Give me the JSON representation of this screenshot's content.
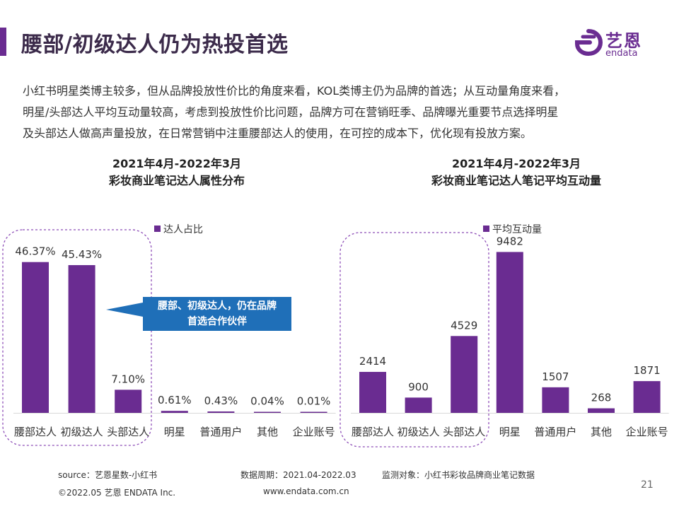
{
  "header": {
    "title": "腰部/初级达人仍为热投首选",
    "logo_cn": "艺恩",
    "logo_en": "endata"
  },
  "intro": {
    "line1": "小红书明星类博主较多，但从品牌投放性价比的角度来看，KOL类博主仍为品牌的首选；从互动量角度来看，",
    "line2": "明星/头部达人平均互动量较高，考虑到投放性价比问题，品牌方可在营销旺季、品牌曝光重要节点选择明星",
    "line3": "及头部达人做高声量投放，在日常营销中注重腰部达人的使用，在可控的成本下，优化现有投放方案。"
  },
  "callout": {
    "line1": "腰部、初级达人，仍在品牌",
    "line2": "首选合作伙伴"
  },
  "footer": {
    "source": "source：艺恩星数-小红书",
    "period": "数据周期：2021.04-2022.03",
    "target": "监测对象：小红书彩妆品牌商业笔记数据",
    "copyright": "©2022.05 艺恩 ENDATA Inc.",
    "website": "www.endata.com.cn",
    "page_number": "21"
  },
  "colors": {
    "bar": "#6a2c91",
    "callout": "#1f6fb8",
    "highlight_border": "#8e4fb8"
  },
  "chart_data": [
    {
      "type": "bar",
      "title_line1": "2021年4月-2022年3月",
      "title_line2": "彩妆商业笔记达人属性分布",
      "categories": [
        "腰部达人",
        "初级达人",
        "头部达人",
        "明星",
        "普通用户",
        "其他",
        "企业账号"
      ],
      "series": [
        {
          "name": "达人占比",
          "values": [
            46.37,
            45.43,
            7.1,
            0.61,
            0.43,
            0.04,
            0.01
          ],
          "labels": [
            "46.37%",
            "45.43%",
            "7.10%",
            "0.61%",
            "0.43%",
            "0.04%",
            "0.01%"
          ]
        }
      ],
      "ylim": [
        0,
        50
      ],
      "legend": "top-right",
      "grid": false,
      "highlighted_categories": [
        "腰部达人",
        "初级达人",
        "头部达人"
      ]
    },
    {
      "type": "bar",
      "title_line1": "2021年4月-2022年3月",
      "title_line2": "彩妆商业笔记达人笔记平均互动量",
      "categories": [
        "腰部达人",
        "初级达人",
        "头部达人",
        "明星",
        "普通用户",
        "其他",
        "企业账号"
      ],
      "series": [
        {
          "name": "平均互动量",
          "values": [
            2414,
            900,
            4529,
            9482,
            1507,
            268,
            1871
          ],
          "labels": [
            "2414",
            "900",
            "4529",
            "9482",
            "1507",
            "268",
            "1871"
          ]
        }
      ],
      "ylim": [
        0,
        10000
      ],
      "legend": "top-right",
      "grid": false,
      "highlighted_categories": [
        "腰部达人",
        "初级达人",
        "头部达人"
      ]
    }
  ]
}
